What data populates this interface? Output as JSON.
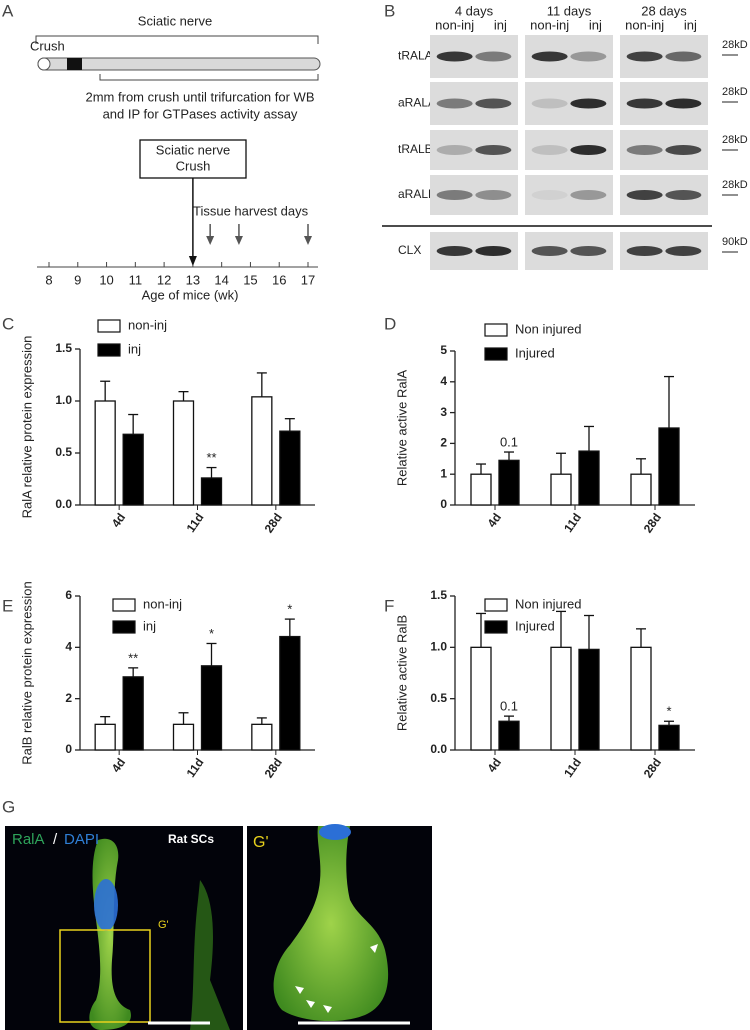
{
  "panel_a": {
    "label": "A",
    "title": "Sciatic nerve",
    "crush_label": "Crush",
    "note_lines": [
      "2mm from crush until trifurcation for WB",
      "and IP for GTPases activity assay"
    ],
    "box_lines": [
      "Sciatic nerve",
      "Crush"
    ],
    "harvest_label": "Tissue harvest days",
    "xlabel": "Age of mice (wk)",
    "xlim": [
      8,
      17
    ],
    "xticks": [
      8,
      9,
      10,
      11,
      12,
      13,
      14,
      15,
      16,
      17
    ],
    "crush_week": 13,
    "harvest_weeks": [
      13.6,
      14.6,
      17
    ]
  },
  "panel_b": {
    "label": "B",
    "groups": [
      {
        "title": "4 days",
        "lanes": [
          "non-inj",
          "inj"
        ]
      },
      {
        "title": "11 days",
        "lanes": [
          "non-inj",
          "inj"
        ]
      },
      {
        "title": "28 days",
        "lanes": [
          "non-inj",
          "inj"
        ]
      }
    ],
    "rows": [
      "tRALA",
      "aRALA",
      "tRALB",
      "aRALB",
      "CLX"
    ],
    "markers": [
      "28kD",
      "28kD",
      "28kD",
      "28kD",
      "90kD"
    ]
  },
  "chart_data": [
    {
      "type": "bar",
      "panel_label": "C",
      "ylabel": "RalA relative protein expression",
      "categories": [
        "4d",
        "11d",
        "28d"
      ],
      "series": [
        {
          "name": "non-inj",
          "color": "#ffffff",
          "values": [
            1.0,
            1.0,
            1.04
          ],
          "errors": [
            0.19,
            0.09,
            0.23
          ],
          "annotations": [
            null,
            null,
            null
          ]
        },
        {
          "name": "inj",
          "color": "#000000",
          "values": [
            0.68,
            0.26,
            0.71
          ],
          "errors": [
            0.19,
            0.1,
            0.12
          ],
          "annotations": [
            null,
            "**",
            null
          ]
        }
      ],
      "ylim": [
        0,
        1.5
      ],
      "yticks": [
        {
          "value": 0,
          "label": "0.0"
        },
        0.5,
        {
          "value": 1,
          "label": "1.0"
        },
        1.5
      ]
    },
    {
      "type": "bar",
      "panel_label": "D",
      "ylabel": "Relative active RalA",
      "categories": [
        "4d",
        "11d",
        "28d"
      ],
      "series": [
        {
          "name": "Non injured",
          "color": "#ffffff",
          "values": [
            1.0,
            1.0,
            1.0
          ],
          "errors": [
            0.33,
            0.68,
            0.5
          ],
          "annotations": [
            null,
            null,
            null
          ]
        },
        {
          "name": "Injured",
          "color": "#000000",
          "values": [
            1.45,
            1.75,
            2.5
          ],
          "errors": [
            0.27,
            0.8,
            1.67
          ],
          "annotations": [
            "0.1",
            null,
            null
          ]
        }
      ],
      "ylim": [
        0,
        5
      ],
      "yticks": [
        0,
        1,
        2,
        3,
        4,
        5
      ]
    },
    {
      "type": "bar",
      "panel_label": "E",
      "ylabel": "RalB relative protein expression",
      "categories": [
        "4d",
        "11d",
        "28d"
      ],
      "series": [
        {
          "name": "non-inj",
          "color": "#ffffff",
          "values": [
            1.0,
            1.0,
            1.0
          ],
          "errors": [
            0.3,
            0.45,
            0.25
          ],
          "annotations": [
            null,
            null,
            null
          ]
        },
        {
          "name": "inj",
          "color": "#000000",
          "values": [
            2.85,
            3.28,
            4.42
          ],
          "errors": [
            0.35,
            0.87,
            0.68
          ],
          "annotations": [
            "**",
            "*",
            "*"
          ]
        }
      ],
      "ylim": [
        0,
        6
      ],
      "yticks": [
        0,
        2,
        4,
        6
      ]
    },
    {
      "type": "bar",
      "panel_label": "F",
      "ylabel": "Relative active RalB",
      "categories": [
        "4d",
        "11d",
        "28d"
      ],
      "series": [
        {
          "name": "Non injured",
          "color": "#ffffff",
          "values": [
            1.0,
            1.0,
            1.0
          ],
          "errors": [
            0.33,
            0.35,
            0.18
          ],
          "annotations": [
            null,
            null,
            null
          ]
        },
        {
          "name": "Injured",
          "color": "#000000",
          "values": [
            0.28,
            0.98,
            0.24
          ],
          "errors": [
            0.05,
            0.33,
            0.04
          ],
          "annotations": [
            "0.1",
            null,
            "*"
          ]
        }
      ],
      "ylim": [
        0,
        1.5
      ],
      "yticks": [
        {
          "value": 0,
          "label": "0.0"
        },
        0.5,
        {
          "value": 1,
          "label": "1.0"
        },
        1.5
      ]
    }
  ],
  "panel_g": {
    "label": "G",
    "stain_1": "RalA",
    "separator": "/",
    "stain_2": "DAPI",
    "cell_type": "Rat SCs",
    "inset_label": "G'",
    "zoom_label": "G'"
  }
}
